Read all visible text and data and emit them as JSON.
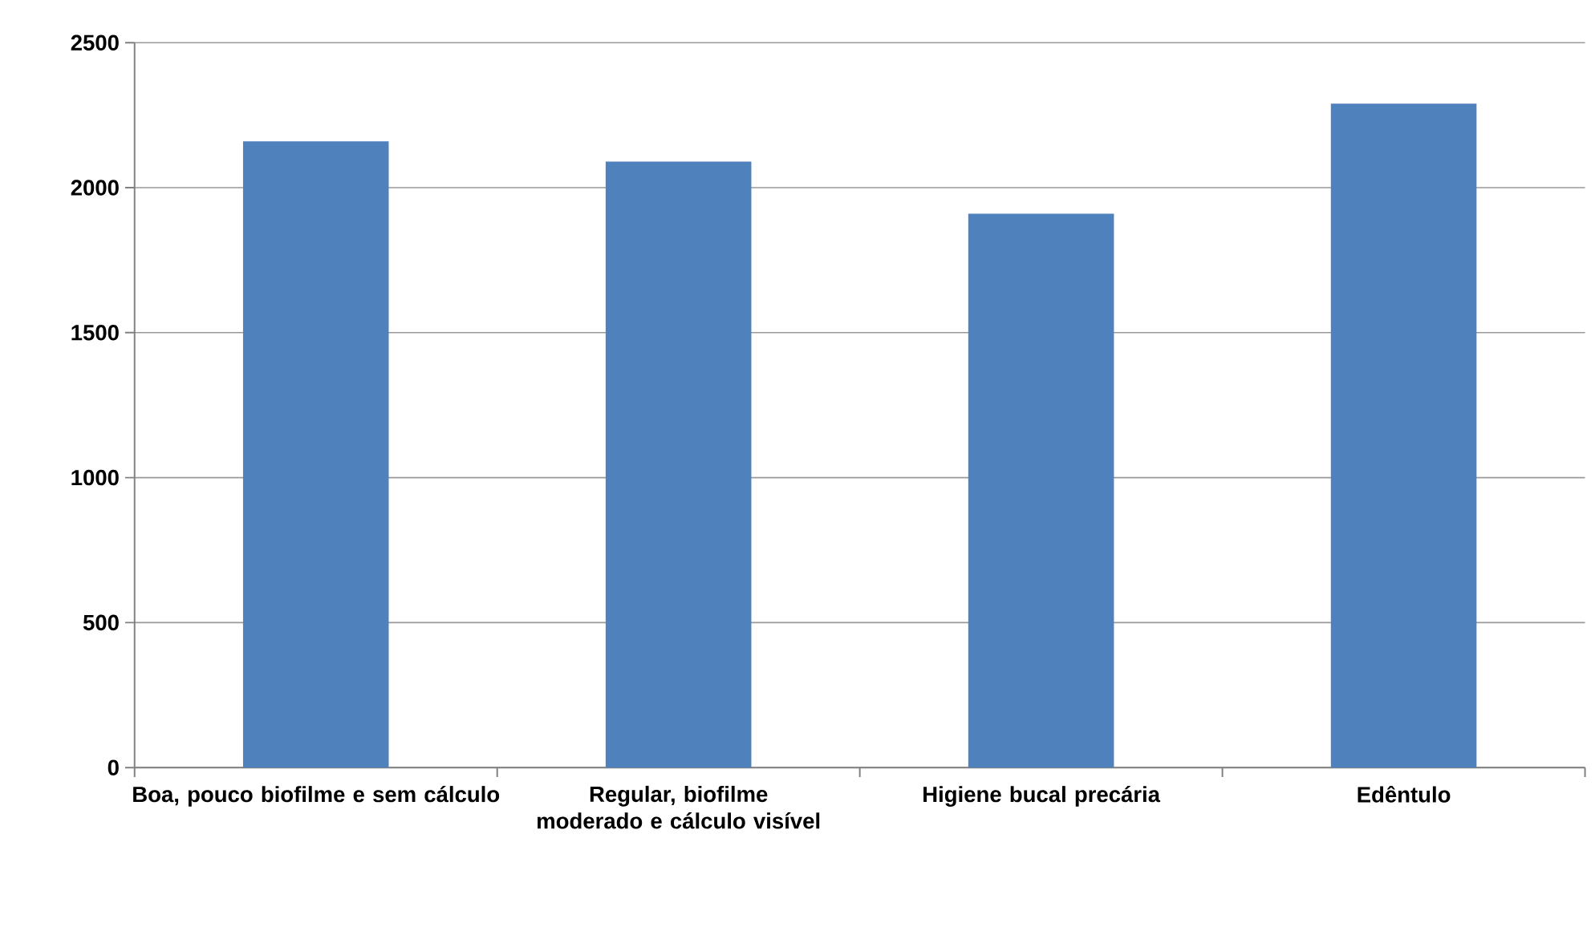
{
  "chart_data": {
    "type": "bar",
    "categories": [
      "Boa, pouco biofilme e sem cálculo",
      "Regular, biofilme moderado e cálculo visível",
      "Higiene bucal precária",
      "Edêntulo"
    ],
    "values": [
      2160,
      2090,
      1910,
      2290
    ],
    "color": "#4f81bd",
    "ylim": [
      0,
      2500
    ],
    "yticks": [
      0,
      500,
      1000,
      1500,
      2000,
      2500
    ],
    "grid": "y"
  }
}
